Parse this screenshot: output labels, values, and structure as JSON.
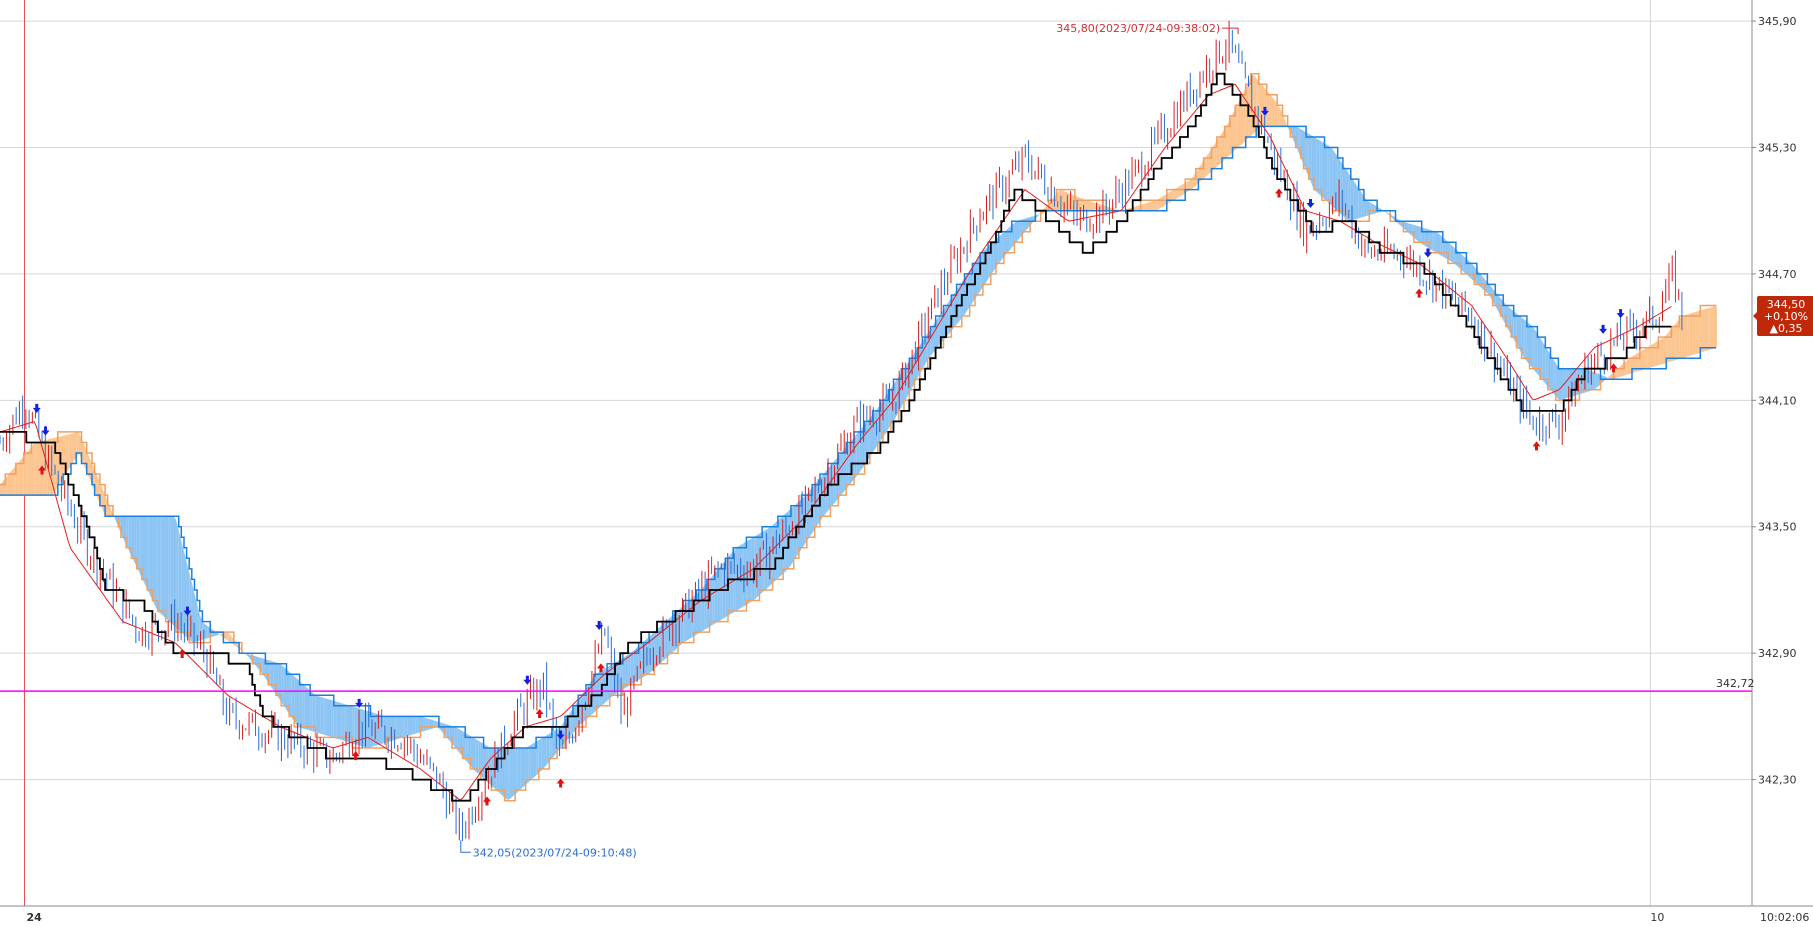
{
  "chart_data": {
    "type": "candlestick-ichimoku",
    "y_axis": {
      "min": 341.7,
      "max": 346.0,
      "ticks": [
        "345,90",
        "345,30",
        "344,70",
        "344,10",
        "343,50",
        "342,90",
        "342,30"
      ],
      "tick_values": [
        345.9,
        345.3,
        344.7,
        344.1,
        343.5,
        342.9,
        342.3
      ],
      "grid": true
    },
    "x_axis": {
      "labels": [
        {
          "text": "24",
          "pos": 0.014
        },
        {
          "text": "10",
          "pos": 0.942
        },
        {
          "text": "10:02:06",
          "pos": 1.0
        }
      ]
    },
    "vertical_marker": {
      "pos": 0.014,
      "color": "#e05050"
    },
    "horizontal_line": {
      "value": 342.72,
      "label": "342,72",
      "color": "#ff00ff"
    },
    "last_price": {
      "price": "344,50",
      "change_pct": "+0,10%",
      "change": "▲0,35",
      "value": 344.5,
      "color": "#c0280a"
    },
    "annotations": {
      "high": {
        "text": "345,80(2023/07/24-09:38:02)",
        "value": 345.8,
        "pos": 0.701,
        "color": "#d03030"
      },
      "low": {
        "text": "342,05(2023/07/24-09:10:48)",
        "value": 342.05,
        "pos": 0.263,
        "color": "#2a6fd0"
      }
    },
    "series": {
      "price_knots": [
        [
          0,
          343.9
        ],
        [
          0.014,
          344.1
        ],
        [
          0.028,
          343.8
        ],
        [
          0.05,
          343.4
        ],
        [
          0.08,
          343.0
        ],
        [
          0.1,
          343.05
        ],
        [
          0.117,
          342.9
        ],
        [
          0.13,
          342.6
        ],
        [
          0.16,
          342.5
        ],
        [
          0.19,
          342.4
        ],
        [
          0.205,
          342.55
        ],
        [
          0.23,
          342.5
        ],
        [
          0.25,
          342.3
        ],
        [
          0.263,
          342.05
        ],
        [
          0.28,
          342.35
        ],
        [
          0.295,
          342.6
        ],
        [
          0.31,
          342.75
        ],
        [
          0.32,
          342.4
        ],
        [
          0.33,
          342.6
        ],
        [
          0.345,
          343.0
        ],
        [
          0.355,
          342.6
        ],
        [
          0.37,
          342.9
        ],
        [
          0.39,
          343.1
        ],
        [
          0.41,
          343.3
        ],
        [
          0.43,
          343.3
        ],
        [
          0.46,
          343.6
        ],
        [
          0.49,
          344.0
        ],
        [
          0.51,
          344.1
        ],
        [
          0.535,
          344.6
        ],
        [
          0.56,
          345.0
        ],
        [
          0.585,
          345.25
        ],
        [
          0.6,
          345.1
        ],
        [
          0.615,
          344.95
        ],
        [
          0.63,
          345.0
        ],
        [
          0.65,
          345.2
        ],
        [
          0.67,
          345.45
        ],
        [
          0.69,
          345.7
        ],
        [
          0.701,
          345.8
        ],
        [
          0.715,
          345.5
        ],
        [
          0.73,
          345.2
        ],
        [
          0.745,
          344.9
        ],
        [
          0.765,
          345.05
        ],
        [
          0.78,
          344.8
        ],
        [
          0.8,
          344.8
        ],
        [
          0.82,
          344.65
        ],
        [
          0.84,
          344.5
        ],
        [
          0.86,
          344.2
        ],
        [
          0.875,
          344.0
        ],
        [
          0.89,
          344.0
        ],
        [
          0.905,
          344.25
        ],
        [
          0.925,
          344.4
        ],
        [
          0.945,
          344.5
        ],
        [
          0.955,
          344.7
        ],
        [
          0.96,
          344.5
        ]
      ],
      "tenkan_knots": [
        [
          0,
          343.95
        ],
        [
          0.02,
          344.0
        ],
        [
          0.04,
          343.4
        ],
        [
          0.07,
          343.05
        ],
        [
          0.1,
          342.95
        ],
        [
          0.13,
          342.7
        ],
        [
          0.16,
          342.55
        ],
        [
          0.19,
          342.45
        ],
        [
          0.21,
          342.5
        ],
        [
          0.24,
          342.35
        ],
        [
          0.263,
          342.2
        ],
        [
          0.28,
          342.4
        ],
        [
          0.3,
          342.55
        ],
        [
          0.32,
          342.6
        ],
        [
          0.345,
          342.8
        ],
        [
          0.37,
          342.95
        ],
        [
          0.4,
          343.15
        ],
        [
          0.43,
          343.3
        ],
        [
          0.46,
          343.55
        ],
        [
          0.49,
          343.9
        ],
        [
          0.51,
          344.1
        ],
        [
          0.535,
          344.45
        ],
        [
          0.56,
          344.8
        ],
        [
          0.585,
          345.1
        ],
        [
          0.61,
          344.95
        ],
        [
          0.64,
          345.0
        ],
        [
          0.665,
          345.3
        ],
        [
          0.69,
          345.55
        ],
        [
          0.705,
          345.6
        ],
        [
          0.725,
          345.35
        ],
        [
          0.745,
          345.0
        ],
        [
          0.765,
          344.95
        ],
        [
          0.785,
          344.85
        ],
        [
          0.81,
          344.75
        ],
        [
          0.84,
          344.55
        ],
        [
          0.86,
          344.3
        ],
        [
          0.875,
          344.1
        ],
        [
          0.89,
          344.15
        ],
        [
          0.91,
          344.35
        ],
        [
          0.935,
          344.45
        ],
        [
          0.955,
          344.55
        ]
      ],
      "kijun_knots": [
        [
          0,
          343.95
        ],
        [
          0.03,
          343.9
        ],
        [
          0.05,
          343.5
        ],
        [
          0.06,
          343.2
        ],
        [
          0.08,
          343.15
        ],
        [
          0.1,
          342.9
        ],
        [
          0.12,
          342.9
        ],
        [
          0.14,
          342.85
        ],
        [
          0.15,
          342.6
        ],
        [
          0.17,
          342.5
        ],
        [
          0.19,
          342.4
        ],
        [
          0.21,
          342.4
        ],
        [
          0.23,
          342.35
        ],
        [
          0.25,
          342.25
        ],
        [
          0.265,
          342.2
        ],
        [
          0.28,
          342.35
        ],
        [
          0.3,
          342.55
        ],
        [
          0.32,
          342.55
        ],
        [
          0.34,
          342.7
        ],
        [
          0.36,
          342.95
        ],
        [
          0.38,
          343.05
        ],
        [
          0.4,
          343.15
        ],
        [
          0.42,
          343.25
        ],
        [
          0.44,
          343.3
        ],
        [
          0.46,
          343.55
        ],
        [
          0.48,
          343.75
        ],
        [
          0.5,
          343.85
        ],
        [
          0.52,
          344.1
        ],
        [
          0.54,
          344.45
        ],
        [
          0.56,
          344.75
        ],
        [
          0.58,
          345.1
        ],
        [
          0.6,
          344.95
        ],
        [
          0.62,
          344.8
        ],
        [
          0.64,
          344.95
        ],
        [
          0.66,
          345.2
        ],
        [
          0.68,
          345.4
        ],
        [
          0.695,
          345.65
        ],
        [
          0.71,
          345.5
        ],
        [
          0.73,
          345.15
        ],
        [
          0.75,
          344.9
        ],
        [
          0.77,
          344.95
        ],
        [
          0.79,
          344.8
        ],
        [
          0.81,
          344.75
        ],
        [
          0.83,
          344.55
        ],
        [
          0.85,
          344.3
        ],
        [
          0.87,
          344.05
        ],
        [
          0.89,
          344.05
        ],
        [
          0.905,
          344.25
        ],
        [
          0.925,
          344.3
        ],
        [
          0.94,
          344.45
        ],
        [
          0.955,
          344.45
        ]
      ],
      "span_a_knots": [
        [
          0,
          343.7
        ],
        [
          0.02,
          343.9
        ],
        [
          0.045,
          343.95
        ],
        [
          0.07,
          343.45
        ],
        [
          0.09,
          343.1
        ],
        [
          0.11,
          342.95
        ],
        [
          0.13,
          343.0
        ],
        [
          0.15,
          342.8
        ],
        [
          0.17,
          342.55
        ],
        [
          0.19,
          342.5
        ],
        [
          0.21,
          342.45
        ],
        [
          0.23,
          342.5
        ],
        [
          0.25,
          342.55
        ],
        [
          0.27,
          342.35
        ],
        [
          0.29,
          342.2
        ],
        [
          0.31,
          342.35
        ],
        [
          0.33,
          342.55
        ],
        [
          0.35,
          342.7
        ],
        [
          0.37,
          342.8
        ],
        [
          0.39,
          342.95
        ],
        [
          0.41,
          343.05
        ],
        [
          0.43,
          343.15
        ],
        [
          0.45,
          343.3
        ],
        [
          0.47,
          343.55
        ],
        [
          0.49,
          343.75
        ],
        [
          0.51,
          344.0
        ],
        [
          0.53,
          344.3
        ],
        [
          0.55,
          344.5
        ],
        [
          0.57,
          344.75
        ],
        [
          0.59,
          344.95
        ],
        [
          0.605,
          345.1
        ],
        [
          0.62,
          345.05
        ],
        [
          0.64,
          345.0
        ],
        [
          0.66,
          345.05
        ],
        [
          0.68,
          345.15
        ],
        [
          0.7,
          345.4
        ],
        [
          0.715,
          345.65
        ],
        [
          0.73,
          345.5
        ],
        [
          0.75,
          345.1
        ],
        [
          0.77,
          344.95
        ],
        [
          0.79,
          345.0
        ],
        [
          0.81,
          344.85
        ],
        [
          0.83,
          344.75
        ],
        [
          0.85,
          344.6
        ],
        [
          0.87,
          344.3
        ],
        [
          0.89,
          344.1
        ],
        [
          0.91,
          344.15
        ],
        [
          0.93,
          344.3
        ],
        [
          0.95,
          344.4
        ],
        [
          0.96,
          344.5
        ],
        [
          0.98,
          344.55
        ]
      ],
      "span_b_knots": [
        [
          0,
          343.65
        ],
        [
          0.03,
          343.65
        ],
        [
          0.045,
          343.85
        ],
        [
          0.06,
          343.55
        ],
        [
          0.08,
          343.55
        ],
        [
          0.1,
          343.55
        ],
        [
          0.115,
          343.05
        ],
        [
          0.14,
          342.9
        ],
        [
          0.16,
          342.85
        ],
        [
          0.18,
          342.7
        ],
        [
          0.2,
          342.65
        ],
        [
          0.22,
          342.6
        ],
        [
          0.24,
          342.6
        ],
        [
          0.26,
          342.55
        ],
        [
          0.28,
          342.45
        ],
        [
          0.3,
          342.45
        ],
        [
          0.32,
          342.55
        ],
        [
          0.34,
          342.8
        ],
        [
          0.36,
          342.9
        ],
        [
          0.38,
          343.05
        ],
        [
          0.4,
          343.2
        ],
        [
          0.42,
          343.4
        ],
        [
          0.44,
          343.5
        ],
        [
          0.46,
          343.65
        ],
        [
          0.48,
          343.85
        ],
        [
          0.5,
          344.05
        ],
        [
          0.52,
          344.3
        ],
        [
          0.54,
          344.55
        ],
        [
          0.56,
          344.8
        ],
        [
          0.58,
          344.95
        ],
        [
          0.6,
          345.0
        ],
        [
          0.62,
          345.0
        ],
        [
          0.64,
          345.0
        ],
        [
          0.66,
          345.0
        ],
        [
          0.68,
          345.1
        ],
        [
          0.7,
          345.25
        ],
        [
          0.72,
          345.4
        ],
        [
          0.74,
          345.4
        ],
        [
          0.76,
          345.3
        ],
        [
          0.78,
          345.05
        ],
        [
          0.8,
          344.95
        ],
        [
          0.82,
          344.9
        ],
        [
          0.84,
          344.75
        ],
        [
          0.86,
          344.55
        ],
        [
          0.875,
          344.45
        ],
        [
          0.89,
          344.25
        ],
        [
          0.905,
          344.25
        ],
        [
          0.92,
          344.2
        ],
        [
          0.94,
          344.25
        ],
        [
          0.96,
          344.3
        ],
        [
          0.98,
          344.35
        ]
      ],
      "colors": {
        "price_up": "#d02020",
        "price_down": "#2a6fd0",
        "tenkan": "#e02020",
        "kijun": "#000000",
        "span_a": "#f0a060",
        "span_b": "#1a80e0",
        "cloud_bull": "#fcc590",
        "cloud_bear": "#8cc4f4"
      }
    },
    "signals": {
      "buy_arrows": [
        0.024,
        0.104,
        0.203,
        0.278,
        0.308,
        0.32,
        0.343,
        0.73,
        0.81,
        0.877,
        0.921
      ],
      "sell_arrows": [
        0.021,
        0.026,
        0.107,
        0.205,
        0.301,
        0.32,
        0.342,
        0.722,
        0.748,
        0.815,
        0.915,
        0.925
      ]
    }
  }
}
